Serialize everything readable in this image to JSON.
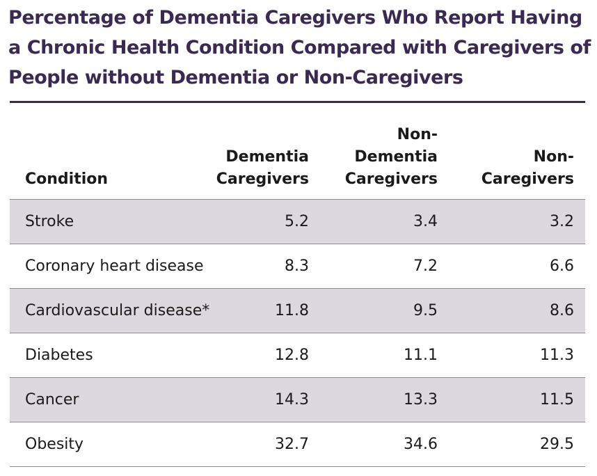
{
  "title": {
    "line1": "Percentage of Dementia Caregivers Who Report Having",
    "line2": "a Chronic Health Condition Compared with Caregivers of",
    "line3": "People without Dementia or Non-Caregivers"
  },
  "table": {
    "headers": {
      "condition": "Condition",
      "dementia_caregivers": [
        "Dementia",
        "Caregivers"
      ],
      "non_dementia_caregivers": [
        "Non-",
        "Dementia",
        "Caregivers"
      ],
      "non_caregivers": [
        "Non-",
        "Caregivers"
      ]
    },
    "rows": [
      {
        "condition": "Stroke",
        "dementia": "5.2",
        "non_dementia": "3.4",
        "non_caregivers": "3.2"
      },
      {
        "condition": "Coronary heart disease",
        "dementia": "8.3",
        "non_dementia": "7.2",
        "non_caregivers": "6.6"
      },
      {
        "condition": "Cardiovascular disease*",
        "dementia": "11.8",
        "non_dementia": "9.5",
        "non_caregivers": "8.6"
      },
      {
        "condition": "Diabetes",
        "dementia": "12.8",
        "non_dementia": "11.1",
        "non_caregivers": "11.3"
      },
      {
        "condition": "Cancer",
        "dementia": "14.3",
        "non_dementia": "13.3",
        "non_caregivers": "11.5"
      },
      {
        "condition": "Obesity",
        "dementia": "32.7",
        "non_dementia": "34.6",
        "non_caregivers": "29.5"
      }
    ]
  },
  "colors": {
    "title": "#3a2a52",
    "shaded_row": "#dcd8e0",
    "rule": "#3a2a52",
    "row_divider": "#8a8a8a"
  }
}
